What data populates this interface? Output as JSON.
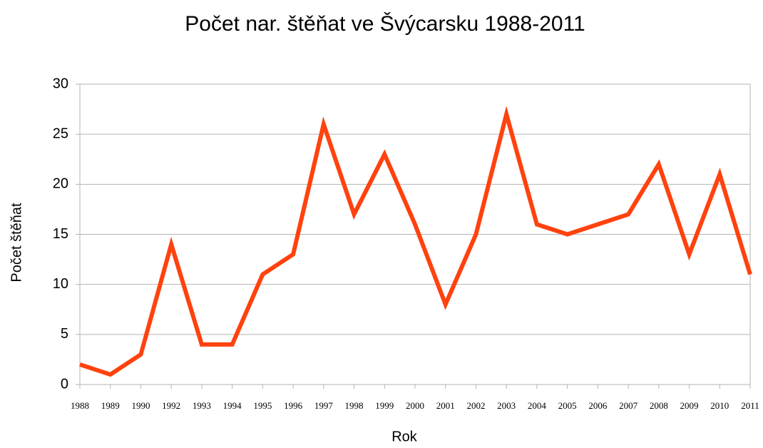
{
  "chart_data": {
    "type": "line",
    "title": "Počet nar. štěňat ve Švýcarsku 1988-2011",
    "x_label": "Rok",
    "y_label": "Počet štěňat",
    "categories": [
      "1988",
      "1989",
      "1990",
      "1992",
      "1993",
      "1994",
      "1995",
      "1996",
      "1997",
      "1998",
      "1999",
      "2000",
      "2001",
      "2002",
      "2003",
      "2004",
      "2005",
      "2006",
      "2007",
      "2008",
      "2009",
      "2010",
      "2011"
    ],
    "series": [
      {
        "name": "Počet štěňat",
        "color": "#ff420e",
        "values": [
          2,
          1,
          3,
          14,
          4,
          4,
          11,
          13,
          26,
          17,
          23,
          16,
          8,
          15,
          27,
          16,
          15,
          16,
          17,
          22,
          13,
          21,
          11
        ]
      }
    ],
    "ylim": [
      0,
      30
    ],
    "yticks": [
      0,
      5,
      10,
      15,
      20,
      25,
      30
    ],
    "grid": true
  }
}
